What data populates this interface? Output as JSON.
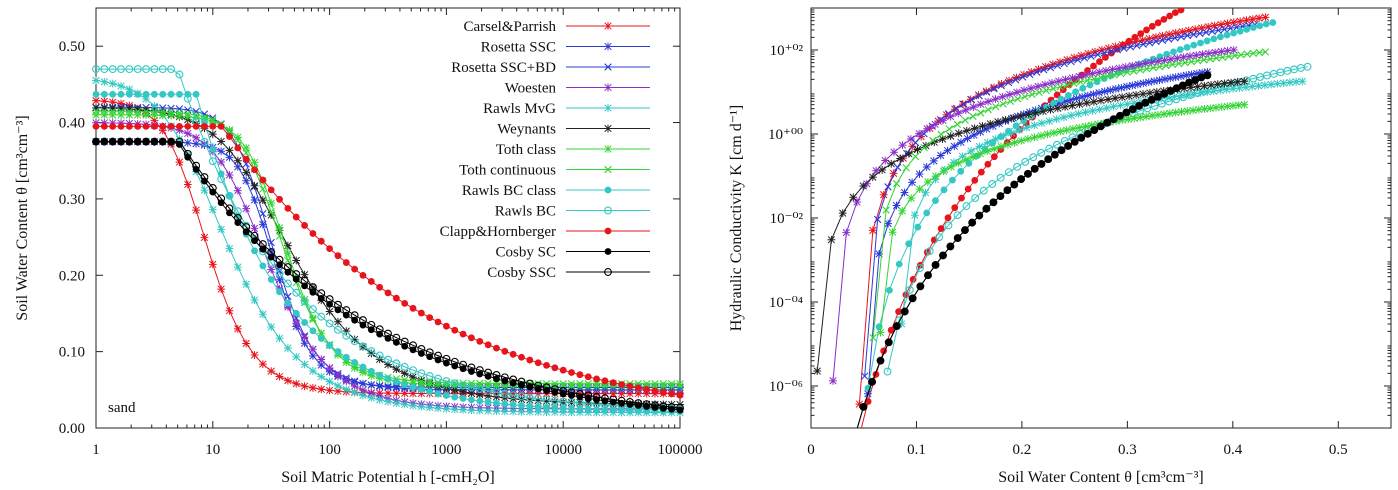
{
  "chart_data": [
    {
      "type": "line",
      "xscale": "log",
      "xlabel": "Soil Matric Potential h [-cmH₂O]",
      "ylabel": "Soil Water Content θ [cm³cm⁻³]",
      "xlim": [
        1,
        100000
      ],
      "ylim": [
        0,
        0.55
      ],
      "xticks": [
        "1",
        "10",
        "100",
        "1000",
        "10000",
        "100000"
      ],
      "yticks": [
        "0.00",
        "0.10",
        "0.20",
        "0.30",
        "0.40",
        "0.50"
      ],
      "annotation": "sand",
      "legend_position": "top-right",
      "series": [
        {
          "name": "Carsel&Parrish",
          "color": "#e8141c",
          "marker": "star",
          "theta_r": 0.045,
          "theta_s": 0.43,
          "alpha": 0.145,
          "n": 2.68
        },
        {
          "name": "Rosetta SSC",
          "color": "#2a3ad8",
          "marker": "star",
          "theta_r": 0.053,
          "theta_s": 0.375,
          "alpha": 0.035,
          "n": 3.18
        },
        {
          "name": "Rosetta SSC+BD",
          "color": "#2a3ad8",
          "marker": "x",
          "theta_r": 0.05,
          "theta_s": 0.42,
          "alpha": 0.038,
          "n": 2.9
        },
        {
          "name": "Woesten",
          "color": "#8a2fc8",
          "marker": "star",
          "theta_r": 0.025,
          "theta_s": 0.4,
          "alpha": 0.05,
          "n": 2.2
        },
        {
          "name": "Rawls MvG",
          "color": "#33c8c4",
          "marker": "star",
          "theta_r": 0.02,
          "theta_s": 0.46,
          "alpha": 0.14,
          "n": 1.9
        },
        {
          "name": "Weynants",
          "color": "#222222",
          "marker": "star",
          "theta_r": 0.03,
          "theta_s": 0.42,
          "alpha": 0.045,
          "n": 1.75
        },
        {
          "name": "Toth class",
          "color": "#35d435",
          "marker": "star",
          "theta_r": 0.055,
          "theta_s": 0.41,
          "alpha": 0.03,
          "n": 2.7
        },
        {
          "name": "Toth continuous",
          "color": "#35d435",
          "marker": "x",
          "theta_r": 0.058,
          "theta_s": 0.415,
          "alpha": 0.033,
          "n": 2.6
        },
        {
          "name": "Rawls BC class",
          "color": "#33c8c4",
          "marker": "dot",
          "theta_r": 0.02,
          "theta_s": 0.437,
          "hb": 7.26,
          "lambda": 0.592
        },
        {
          "name": "Rawls BC",
          "color": "#33c8c4",
          "marker": "ring",
          "theta_r": 0.02,
          "theta_s": 0.47,
          "hb": 5.0,
          "lambda": 0.45
        },
        {
          "name": "Clapp&Hornberger",
          "color": "#e8141c",
          "marker": "dot",
          "theta_r": 0.0,
          "theta_s": 0.395,
          "hb": 12.1,
          "lambda": 0.246
        },
        {
          "name": "Cosby SC",
          "color": "#000000",
          "marker": "dot",
          "theta_r": 0.0,
          "theta_s": 0.375,
          "hb": 5.0,
          "lambda": 0.28
        },
        {
          "name": "Cosby SSC",
          "color": "#000000",
          "marker": "ring",
          "theta_r": 0.0,
          "theta_s": 0.375,
          "hb": 5.2,
          "lambda": 0.27
        }
      ]
    },
    {
      "type": "line",
      "yscale": "log",
      "xlabel": "Soil Water Content θ [cm³cm⁻³]",
      "ylabel": "Hydraulic Conductivity K [cm d⁻¹]",
      "xlim": [
        0,
        0.55
      ],
      "ylim": [
        1e-07,
        1000
      ],
      "xticks": [
        "0",
        "0.1",
        "0.2",
        "0.3",
        "0.4",
        "0.5"
      ],
      "yticks": [
        "10⁻⁰⁶",
        "10⁻⁰⁴",
        "10⁻⁰²",
        "10⁺⁰⁰",
        "10⁺⁰²"
      ],
      "series": [
        {
          "name": "Clapp&Hornberger",
          "color": "#e8141c",
          "marker": "dot",
          "theta_start": 0.0,
          "theta_end": 0.35,
          "k_end": 900,
          "exponent": 11.5
        },
        {
          "name": "Carsel&Parrish",
          "color": "#e8141c",
          "marker": "star",
          "theta_start": 0.045,
          "theta_end": 0.43,
          "k_end": 600,
          "exponent": 3.5
        },
        {
          "name": "Rosetta SSC",
          "color": "#2a3ad8",
          "marker": "star",
          "theta_start": 0.053,
          "theta_end": 0.375,
          "k_end": 30.0,
          "exponent": 3.0
        },
        {
          "name": "Rosetta SSC+BD",
          "color": "#2a3ad8",
          "marker": "x",
          "theta_start": 0.05,
          "theta_end": 0.42,
          "k_end": 400,
          "exponent": 3.2
        },
        {
          "name": "Rawls MvG",
          "color": "#33c8c4",
          "marker": "star",
          "theta_start": 0.085,
          "theta_end": 0.465,
          "k_end": 18,
          "exponent": 2.2
        },
        {
          "name": "Rawls BC class",
          "color": "#33c8c4",
          "marker": "dot",
          "theta_start": 0.04,
          "theta_end": 0.437,
          "k_end": 450,
          "exponent": 6.0
        },
        {
          "name": "Rawls BC",
          "color": "#33c8c4",
          "marker": "ring",
          "theta_start": 0.058,
          "theta_end": 0.47,
          "k_end": 40,
          "exponent": 5.0
        },
        {
          "name": "Woesten",
          "color": "#8a2fc8",
          "marker": "star",
          "theta_start": 0.02,
          "theta_end": 0.4,
          "k_end": 100,
          "exponent": 3.0
        },
        {
          "name": "Weynants",
          "color": "#222222",
          "marker": "star",
          "theta_start": 0.005,
          "theta_end": 0.41,
          "k_end": 18,
          "exponent": 2.6
        },
        {
          "name": "Toth class",
          "color": "#35d435",
          "marker": "star",
          "theta_start": 0.065,
          "theta_end": 0.41,
          "k_end": 5,
          "exponent": 2.1
        },
        {
          "name": "Toth continuous",
          "color": "#35d435",
          "marker": "x",
          "theta_start": 0.058,
          "theta_end": 0.43,
          "k_end": 90,
          "exponent": 2.6
        },
        {
          "name": "Cosby SC",
          "color": "#000000",
          "marker": "dot",
          "theta_start": 0.0,
          "theta_end": 0.375,
          "k_end": 25,
          "exponent": 9.0
        },
        {
          "name": "Cosby SSC",
          "color": "#000000",
          "marker": "ring",
          "theta_start": 0.0,
          "theta_end": 0.375,
          "k_end": 25,
          "exponent": 9.0
        }
      ]
    }
  ]
}
